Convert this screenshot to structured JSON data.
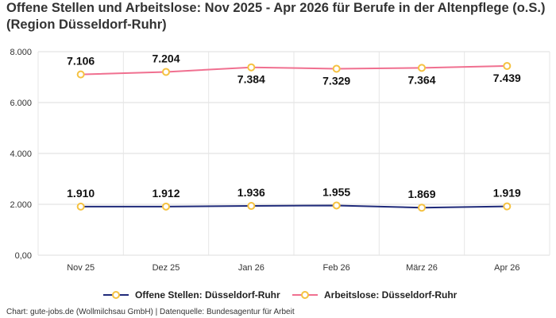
{
  "chart_data": {
    "type": "line",
    "title": "Offene Stellen und Arbeitslose: Nov 2025 - Apr 2026 für Berufe in der Altenpflege (o.S.) (Region Düsseldorf-Ruhr)",
    "categories": [
      "Nov 25",
      "Dez 25",
      "Jan 26",
      "Feb 26",
      "März 26",
      "Apr 26"
    ],
    "y_ticks": [
      "0,00",
      "2.000",
      "4.000",
      "6.000",
      "8.000"
    ],
    "ylim": [
      0,
      8000
    ],
    "grid": true,
    "legend_position": "bottom",
    "series": [
      {
        "name": "Offene Stellen: Düsseldorf-Ruhr",
        "values": [
          1910,
          1912,
          1936,
          1955,
          1869,
          1919
        ],
        "labels": [
          "1.910",
          "1.912",
          "1.936",
          "1.955",
          "1.869",
          "1.919"
        ],
        "color": "#1f2a7a",
        "marker_color": "#f5c242"
      },
      {
        "name": "Arbeitslose: Düsseldorf-Ruhr",
        "values": [
          7106,
          7204,
          7384,
          7329,
          7364,
          7439
        ],
        "labels": [
          "7.106",
          "7.204",
          "7.384",
          "7.329",
          "7.364",
          "7.439"
        ],
        "color": "#f07090",
        "marker_color": "#f5c242"
      }
    ]
  },
  "source": "Chart: gute-jobs.de (Wollmilchsau GmbH) | Datenquelle: Bundesagentur für Arbeit"
}
